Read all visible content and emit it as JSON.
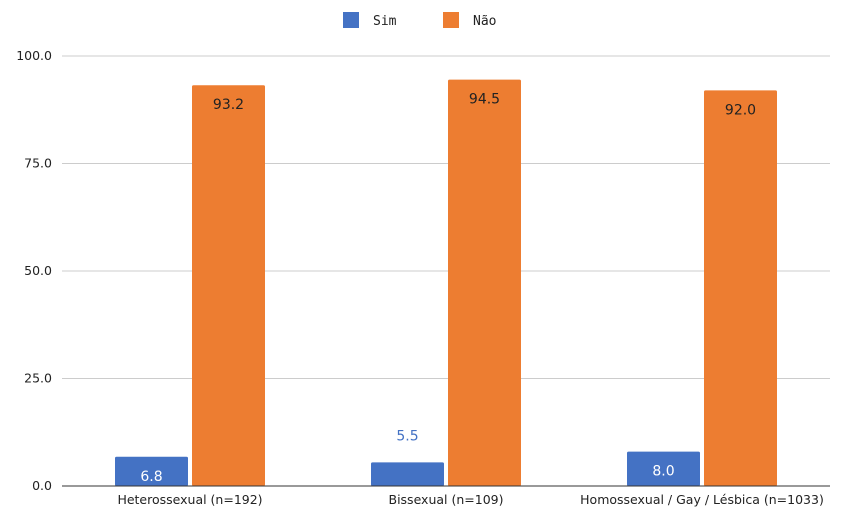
{
  "chart_data": {
    "type": "bar",
    "categories": [
      "Heterossexual (n=192)",
      "Bissexual (n=109)",
      "Homossexual / Gay / Lésbica (n=1033)"
    ],
    "series": [
      {
        "name": "Sim",
        "values": [
          6.8,
          5.5,
          8.0
        ],
        "labels": [
          "6.8",
          "5.5",
          "8.0"
        ],
        "color": "#4472c4"
      },
      {
        "name": "Não",
        "values": [
          93.2,
          94.5,
          92.0
        ],
        "labels": [
          "93.2",
          "94.5",
          "92.0"
        ],
        "color": "#ed7d31"
      }
    ],
    "yticks": [
      "0.0",
      "25.0",
      "50.0",
      "75.0",
      "100.0"
    ],
    "ylim": [
      0,
      100
    ],
    "grid": true,
    "legend": "top-center",
    "colors": {
      "grid": "#cccccc",
      "axis": "#333333",
      "outside_label": "#4472c4",
      "inside_label_sim": "#ffffff",
      "inside_label_nao": "#222222"
    }
  }
}
